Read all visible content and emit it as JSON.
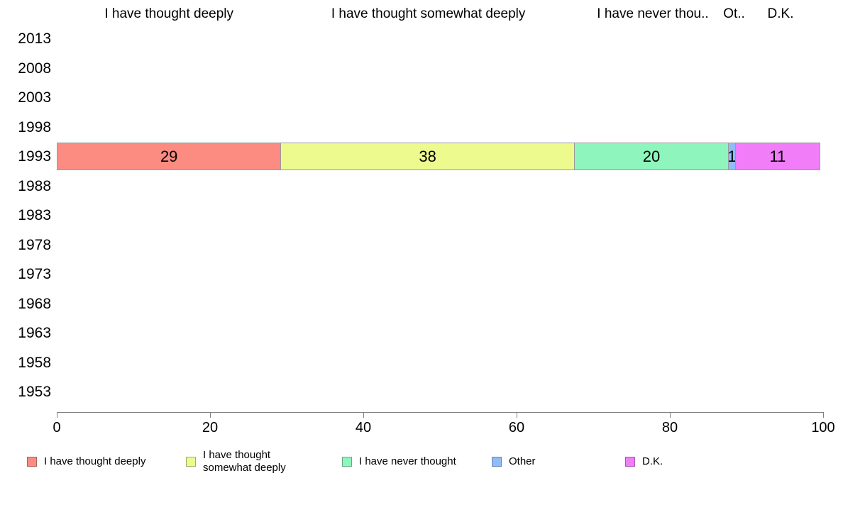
{
  "chart_data": {
    "type": "bar",
    "orientation": "horizontal",
    "stacked": true,
    "title": "",
    "xlabel": "",
    "ylabel": "",
    "grid": "off",
    "legend_position": "bottom",
    "y_categories": [
      "2013",
      "2008",
      "2003",
      "1998",
      "1993",
      "1988",
      "1983",
      "1978",
      "1973",
      "1968",
      "1963",
      "1958",
      "1953"
    ],
    "x_axis": {
      "min": 0,
      "max": 100,
      "ticks": [
        "0",
        "20",
        "40",
        "60",
        "80",
        "100"
      ]
    },
    "series": [
      {
        "name": "I have thought deeply",
        "column_header": "I have thought deeply",
        "color": "#fc8b81",
        "values_by_year": {
          "1993": 29
        }
      },
      {
        "name": "I have thought somewhat deeply",
        "column_header": "I have thought somewhat deeply",
        "color": "#ecfa8e",
        "values_by_year": {
          "1993": 38
        }
      },
      {
        "name": "I have never thought",
        "column_header": "I have never thou..",
        "color": "#8ef6bd",
        "values_by_year": {
          "1993": 20
        }
      },
      {
        "name": "Other",
        "column_header": "Ot..",
        "color": "#90bcf9",
        "values_by_year": {
          "1993": 1
        }
      },
      {
        "name": "D.K.",
        "column_header": "D.K.",
        "color": "#f17df8",
        "values_by_year": {
          "1993": 11
        }
      }
    ]
  }
}
